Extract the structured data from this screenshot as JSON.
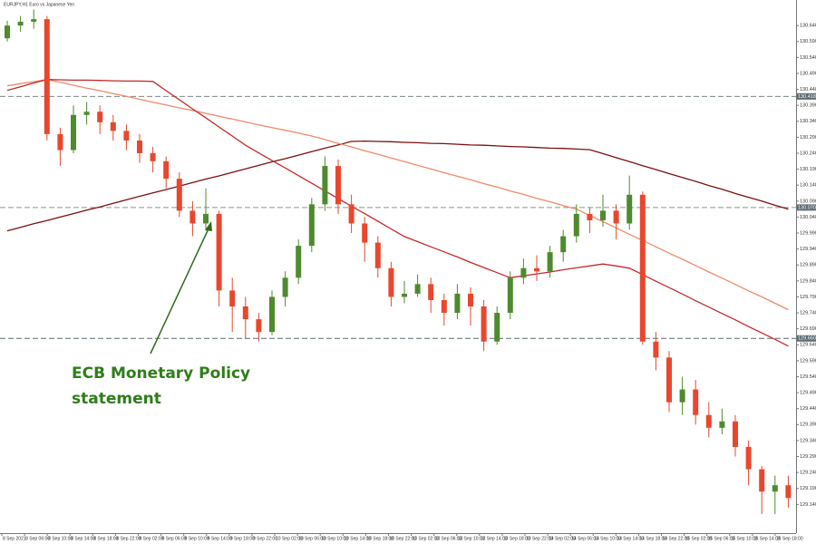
{
  "chart_data": {
    "type": "candlestick",
    "title": "EURJPY,H1  Euro vs Japanese Yen",
    "annotation": [
      "ECB Monetary Policy",
      "statement"
    ],
    "up_color": "#4e8a2e",
    "down_color": "#e8472e",
    "ylim": [
      129.05,
      130.72
    ],
    "yticks": [
      {
        "value": 130.64,
        "label": "130.640"
      },
      {
        "value": 130.59,
        "label": "130.590"
      },
      {
        "value": 130.54,
        "label": "130.540"
      },
      {
        "value": 130.49,
        "label": "130.490"
      },
      {
        "value": 130.44,
        "label": "130.440"
      },
      {
        "value": 130.39,
        "label": "130.390"
      },
      {
        "value": 130.34,
        "label": "130.340"
      },
      {
        "value": 130.29,
        "label": "130.290"
      },
      {
        "value": 130.24,
        "label": "130.240"
      },
      {
        "value": 130.19,
        "label": "130.190"
      },
      {
        "value": 130.14,
        "label": "130.140"
      },
      {
        "value": 130.09,
        "label": "130.090"
      },
      {
        "value": 130.04,
        "label": "130.040"
      },
      {
        "value": 129.99,
        "label": "129.990"
      },
      {
        "value": 129.94,
        "label": "129.940"
      },
      {
        "value": 129.89,
        "label": "129.890"
      },
      {
        "value": 129.84,
        "label": "129.840"
      },
      {
        "value": 129.79,
        "label": "129.790"
      },
      {
        "value": 129.74,
        "label": "129.740"
      },
      {
        "value": 129.69,
        "label": "129.690"
      },
      {
        "value": 129.64,
        "label": "129.640"
      },
      {
        "value": 129.59,
        "label": "129.590"
      },
      {
        "value": 129.54,
        "label": "129.540"
      },
      {
        "value": 129.49,
        "label": "129.490"
      },
      {
        "value": 129.44,
        "label": "129.440"
      },
      {
        "value": 129.39,
        "label": "129.390"
      },
      {
        "value": 129.34,
        "label": "129.340"
      },
      {
        "value": 129.29,
        "label": "129.290"
      },
      {
        "value": 129.24,
        "label": "129.240"
      },
      {
        "value": 129.19,
        "label": "129.190"
      },
      {
        "value": 129.14,
        "label": "129.140"
      }
    ],
    "levels": [
      {
        "value": 130.418,
        "label": "130.418",
        "color": "#7a8a80"
      },
      {
        "value": 130.07,
        "label": "130.070",
        "color": "#7fa07f"
      },
      {
        "value": 129.66,
        "label": "129.660",
        "color": "#5a6a70"
      }
    ],
    "x_labels": [
      "8 Sep 2021",
      "8 Sep 06:00",
      "8 Sep 10:00",
      "8 Sep 14:00",
      "8 Sep 18:00",
      "8 Sep 22:00",
      "9 Sep 02:00",
      "9 Sep 06:00",
      "9 Sep 10:00",
      "9 Sep 14:00",
      "9 Sep 18:00",
      "9 Sep 22:00",
      "10 Sep 02:00",
      "10 Sep 06:00",
      "10 Sep 10:00",
      "10 Sep 14:00",
      "10 Sep 18:00",
      "10 Sep 22:00",
      "13 Sep 02:00",
      "13 Sep 06:00",
      "13 Sep 10:00",
      "13 Sep 14:00",
      "13 Sep 18:00",
      "13 Sep 22:00",
      "14 Sep 02:00",
      "14 Sep 06:00",
      "14 Sep 10:00",
      "14 Sep 14:00",
      "14 Sep 18:00",
      "14 Sep 22:00",
      "15 Sep 02:00",
      "15 Sep 06:00",
      "15 Sep 10:00",
      "15 Sep 14:00",
      "15 Sep 18:00"
    ],
    "candles": {
      "open": [
        130.6,
        130.64,
        130.652,
        130.66,
        130.3,
        130.25,
        130.36,
        130.37,
        130.337,
        130.31,
        130.28,
        130.24,
        130.215,
        130.16,
        130.06,
        130.02,
        130.05,
        129.81,
        129.76,
        129.72,
        129.68,
        129.79,
        129.85,
        129.95,
        130.08,
        130.2,
        130.08,
        130.02,
        129.96,
        129.88,
        129.79,
        129.8,
        129.83,
        129.78,
        129.74,
        129.8,
        129.76,
        129.65,
        129.74,
        129.85,
        129.88,
        129.87,
        129.93,
        129.98,
        130.05,
        130.03,
        130.06,
        130.02,
        130.11,
        129.65,
        129.6,
        129.46,
        129.5,
        129.42,
        129.38,
        129.4,
        129.32,
        129.25,
        129.18,
        129.2
      ],
      "high": [
        130.655,
        130.67,
        130.69,
        130.67,
        130.32,
        130.39,
        130.4,
        130.39,
        130.36,
        130.33,
        130.3,
        130.26,
        130.23,
        130.18,
        130.09,
        130.13,
        130.06,
        129.85,
        129.79,
        129.74,
        129.81,
        129.87,
        129.97,
        130.1,
        130.23,
        130.22,
        130.11,
        130.04,
        129.98,
        129.9,
        129.84,
        129.86,
        129.85,
        129.8,
        129.83,
        129.82,
        129.78,
        129.76,
        129.87,
        129.91,
        129.92,
        129.95,
        130.0,
        130.08,
        130.07,
        130.11,
        130.08,
        130.17,
        130.12,
        129.68,
        129.62,
        129.54,
        129.53,
        129.46,
        129.44,
        129.42,
        129.34,
        129.26,
        129.23,
        129.23
      ],
      "low": [
        130.59,
        130.62,
        130.63,
        130.28,
        130.2,
        130.24,
        130.33,
        130.3,
        130.28,
        130.25,
        130.21,
        130.18,
        130.13,
        130.04,
        129.98,
        130.0,
        129.76,
        129.68,
        129.66,
        129.65,
        129.67,
        129.76,
        129.83,
        129.93,
        130.06,
        130.05,
        129.99,
        129.9,
        129.85,
        129.76,
        129.77,
        129.79,
        129.74,
        129.7,
        129.72,
        129.7,
        129.62,
        129.64,
        129.72,
        129.83,
        129.84,
        129.85,
        129.9,
        129.96,
        129.99,
        130.01,
        129.97,
        130.0,
        129.64,
        129.56,
        129.43,
        129.42,
        129.39,
        129.35,
        129.36,
        129.29,
        129.2,
        129.11,
        129.11,
        129.13
      ],
      "close": [
        130.64,
        130.652,
        130.66,
        130.3,
        130.25,
        130.36,
        130.37,
        130.337,
        130.31,
        130.28,
        130.24,
        130.215,
        130.16,
        130.06,
        130.02,
        130.05,
        129.81,
        129.76,
        129.72,
        129.68,
        129.79,
        129.85,
        129.95,
        130.08,
        130.2,
        130.08,
        130.02,
        129.96,
        129.88,
        129.79,
        129.8,
        129.83,
        129.78,
        129.74,
        129.8,
        129.76,
        129.65,
        129.74,
        129.85,
        129.88,
        129.87,
        129.93,
        129.98,
        130.05,
        130.03,
        130.06,
        130.02,
        130.11,
        129.65,
        129.6,
        129.46,
        129.5,
        129.42,
        129.38,
        129.4,
        129.32,
        129.25,
        129.18,
        129.2,
        129.16
      ]
    },
    "series": [
      {
        "color": "#7a1010",
        "values": [
          129.997,
          130.008,
          130.019,
          130.029,
          130.04,
          130.051,
          130.062,
          130.072,
          130.083,
          130.094,
          130.105,
          130.116,
          130.126,
          130.137,
          130.148,
          130.159,
          130.169,
          130.18,
          130.191,
          130.202,
          130.213,
          130.223,
          130.234,
          130.245,
          130.256,
          130.266,
          130.277,
          130.278,
          130.277,
          130.276,
          130.274,
          130.273,
          130.271,
          130.27,
          130.268,
          130.266,
          130.265,
          130.263,
          130.261,
          130.26,
          130.258,
          130.256,
          130.255,
          130.253,
          130.251,
          130.239,
          130.226,
          130.214,
          130.201,
          130.189,
          130.176,
          130.164,
          130.152,
          130.139,
          130.127,
          130.114,
          130.102,
          130.09,
          130.077,
          130.065
        ]
      },
      {
        "color": "#f08a6a",
        "values": [
          130.451,
          130.458,
          130.464,
          130.471,
          130.462,
          130.453,
          130.444,
          130.436,
          130.427,
          130.418,
          130.409,
          130.4,
          130.391,
          130.382,
          130.374,
          130.365,
          130.356,
          130.347,
          130.338,
          130.329,
          130.32,
          130.312,
          130.303,
          130.294,
          130.283,
          130.271,
          130.26,
          130.248,
          130.237,
          130.225,
          130.214,
          130.202,
          130.191,
          130.179,
          130.168,
          130.157,
          130.145,
          130.134,
          130.122,
          130.111,
          130.099,
          130.088,
          130.076,
          130.065,
          130.045,
          130.026,
          130.006,
          129.986,
          129.967,
          129.947,
          129.927,
          129.908,
          129.888,
          129.868,
          129.849,
          129.829,
          129.809,
          129.79,
          129.77,
          129.75
        ]
      },
      {
        "color": "#c42a2a",
        "values": [
          130.437,
          130.448,
          130.46,
          130.471,
          130.47,
          130.469,
          130.469,
          130.468,
          130.467,
          130.466,
          130.466,
          130.465,
          130.436,
          130.408,
          130.379,
          130.351,
          130.322,
          130.294,
          130.265,
          130.241,
          130.217,
          130.194,
          130.17,
          130.146,
          130.122,
          130.098,
          130.074,
          130.051,
          130.027,
          130.003,
          129.979,
          129.963,
          129.947,
          129.931,
          129.915,
          129.898,
          129.882,
          129.866,
          129.85,
          129.856,
          129.862,
          129.868,
          129.875,
          129.881,
          129.887,
          129.893,
          129.887,
          129.88,
          129.86,
          129.839,
          129.819,
          129.799,
          129.778,
          129.758,
          129.738,
          129.718,
          129.697,
          129.677,
          129.657,
          129.636
        ]
      }
    ]
  }
}
